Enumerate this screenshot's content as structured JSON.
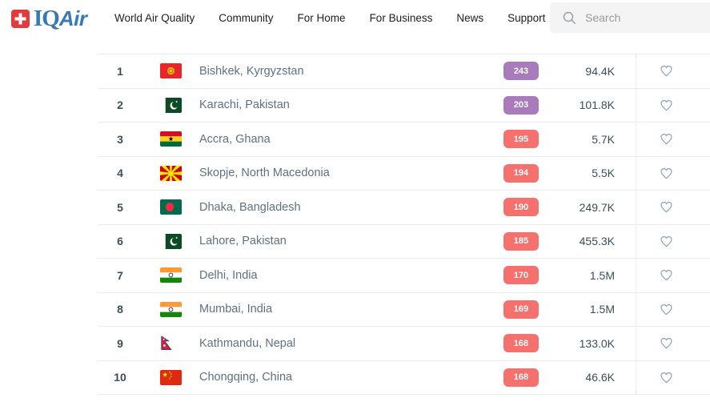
{
  "brand": {
    "logo_iq": "IQ",
    "logo_air": "Air",
    "logo_blue": "#3878b4",
    "logo_red": "#e13b3e"
  },
  "nav": {
    "items": [
      "World Air Quality",
      "Community",
      "For Home",
      "For Business",
      "News",
      "Support"
    ]
  },
  "search": {
    "placeholder": "Search"
  },
  "aqi_colors": {
    "very_unhealthy": "#a97abc",
    "unhealthy": "#f6706d"
  },
  "icons": {
    "heart_stroke": "#8fa2b8",
    "search_stroke": "#9aa0a6"
  },
  "table": {
    "rows": [
      {
        "rank": "1",
        "flag": "kg",
        "flag_name": "kyrgyzstan",
        "city": "Bishkek, Kyrgyzstan",
        "aqi": "243",
        "level": "very_unhealthy",
        "followers": "94.4K"
      },
      {
        "rank": "2",
        "flag": "pk",
        "flag_name": "pakistan",
        "city": "Karachi, Pakistan",
        "aqi": "203",
        "level": "very_unhealthy",
        "followers": "101.8K"
      },
      {
        "rank": "3",
        "flag": "gh",
        "flag_name": "ghana",
        "city": "Accra, Ghana",
        "aqi": "195",
        "level": "unhealthy",
        "followers": "5.7K"
      },
      {
        "rank": "4",
        "flag": "mk",
        "flag_name": "north-macedonia",
        "city": "Skopje, North Macedonia",
        "aqi": "194",
        "level": "unhealthy",
        "followers": "5.5K"
      },
      {
        "rank": "5",
        "flag": "bd",
        "flag_name": "bangladesh",
        "city": "Dhaka, Bangladesh",
        "aqi": "190",
        "level": "unhealthy",
        "followers": "249.7K"
      },
      {
        "rank": "6",
        "flag": "pk",
        "flag_name": "pakistan",
        "city": "Lahore, Pakistan",
        "aqi": "185",
        "level": "unhealthy",
        "followers": "455.3K"
      },
      {
        "rank": "7",
        "flag": "in",
        "flag_name": "india",
        "city": "Delhi, India",
        "aqi": "170",
        "level": "unhealthy",
        "followers": "1.5M"
      },
      {
        "rank": "8",
        "flag": "in",
        "flag_name": "india",
        "city": "Mumbai, India",
        "aqi": "169",
        "level": "unhealthy",
        "followers": "1.5M"
      },
      {
        "rank": "9",
        "flag": "np",
        "flag_name": "nepal",
        "city": "Kathmandu, Nepal",
        "aqi": "168",
        "level": "unhealthy",
        "followers": "133.0K"
      },
      {
        "rank": "10",
        "flag": "cn",
        "flag_name": "china",
        "city": "Chongqing, China",
        "aqi": "168",
        "level": "unhealthy",
        "followers": "46.6K"
      }
    ]
  }
}
